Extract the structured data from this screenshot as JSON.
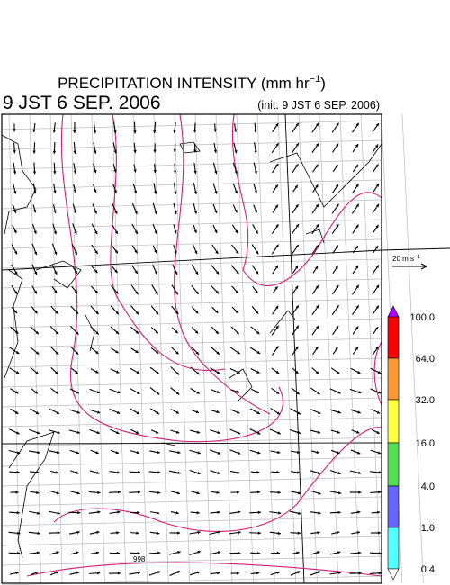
{
  "header": {
    "title": "PRECIPITATION INTENSITY (mm hr",
    "title_sup": "−1",
    "title_end": ")",
    "time": "9 JST 6 SEP. 2006",
    "init": "(init. 9 JST 6 SEP. 2006)"
  },
  "vector_scale": {
    "label": "20 m s",
    "sup": "−1"
  },
  "colorbar": {
    "labels": [
      "100.0",
      "64.0",
      "32.0",
      "16.0",
      "4.0",
      "1.0",
      "0.4"
    ]
  },
  "map": {
    "contour_label": "998"
  }
}
